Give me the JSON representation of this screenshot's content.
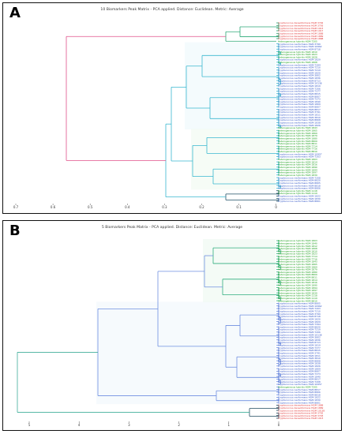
{
  "panels": [
    {
      "letter": "A",
      "title": "10 Biomarkers Peak Matrix - PCA applied. Distance: Euclidean. Metric: Average",
      "axis_ticks": [
        "0.7",
        "0.6",
        "0.5",
        "0.4",
        "0.3",
        "0.2",
        "0.1",
        "0"
      ],
      "leaves": [
        {
          "label": "Cryptococcus deneoformans HGM 3792",
          "group": "red"
        },
        {
          "label": "Cryptococcus deneoformans HGM 3793",
          "group": "red"
        },
        {
          "label": "Cryptococcus deneoformans HGM 1913",
          "group": "red"
        },
        {
          "label": "Cryptococcus deneoformans HGM 1917",
          "group": "red"
        },
        {
          "label": "Cryptococcus deneoformans HGM 1888",
          "group": "red"
        },
        {
          "label": "Cryptococcus deneoformans HGM 1889",
          "group": "red"
        },
        {
          "label": "Cryptococcus deneoformans HGM 1888",
          "group": "red"
        },
        {
          "label": "Heterogeneous hybrids HGM 7205",
          "group": "green"
        },
        {
          "label": "Cryptococcus neoformans HGM 3799",
          "group": "blue"
        },
        {
          "label": "Cryptococcus neoformans HGM 10962",
          "group": "blue"
        },
        {
          "label": "Cryptococcus neoformans HGM 8718",
          "group": "blue"
        },
        {
          "label": "Heterogeneous hybrids HGM 1810",
          "group": "green"
        },
        {
          "label": "Heterogeneous hybrids HGM 1823",
          "group": "green"
        },
        {
          "label": "Heterogeneous hybrids HGM 1828",
          "group": "green"
        },
        {
          "label": "Cryptococcus neoformans HGM 1829",
          "group": "blue"
        },
        {
          "label": "Heterogeneous hybrids HGM 1808",
          "group": "green"
        },
        {
          "label": "Cryptococcus neoformans HGM 7394",
          "group": "blue"
        },
        {
          "label": "Cryptococcus neoformans HGM 7210",
          "group": "blue"
        },
        {
          "label": "Cryptococcus neoformans HGM 7219",
          "group": "blue"
        },
        {
          "label": "Cryptococcus neoformans HGM 1820",
          "group": "blue"
        },
        {
          "label": "Cryptococcus neoformans HGM 3802",
          "group": "blue"
        },
        {
          "label": "Cryptococcus neoformans HGM 1836",
          "group": "blue"
        },
        {
          "label": "Cryptococcus neoformans HGM 8713",
          "group": "blue"
        },
        {
          "label": "Cryptococcus neoformans HGM 10138",
          "group": "blue"
        },
        {
          "label": "Cryptococcus neoformans HGM 1819",
          "group": "blue"
        },
        {
          "label": "Cryptococcus neoformans HGM 7206",
          "group": "blue"
        },
        {
          "label": "Cryptococcus neoformans HGM 7377",
          "group": "blue"
        },
        {
          "label": "Cryptococcus neoformans HGM 8815",
          "group": "blue"
        },
        {
          "label": "Cryptococcus neoformans HGM 8807",
          "group": "blue"
        },
        {
          "label": "Cryptococcus neoformans HGM 7373",
          "group": "blue"
        },
        {
          "label": "Cryptococcus neoformans HGM 1840",
          "group": "blue"
        },
        {
          "label": "Cryptococcus neoformans HGM 1809",
          "group": "blue"
        },
        {
          "label": "Cryptococcus neoformans HGM 8807",
          "group": "blue"
        },
        {
          "label": "Cryptococcus neoformans HGM 8817",
          "group": "blue"
        },
        {
          "label": "Cryptococcus neoformans HGM 3791",
          "group": "blue"
        },
        {
          "label": "Cryptococcus neoformans HGM 1811",
          "group": "blue"
        },
        {
          "label": "Cryptococcus neoformans HGM 3810",
          "group": "blue"
        },
        {
          "label": "Cryptococcus neoformans HGM 8808",
          "group": "blue"
        },
        {
          "label": "Cryptococcus neoformans HGM 1838",
          "group": "blue"
        },
        {
          "label": "Cryptococcus neoformans HGM 1826",
          "group": "blue"
        },
        {
          "label": "Heterogeneous hybrids HGM 1843",
          "group": "green"
        },
        {
          "label": "Heterogeneous hybrids HGM 1865",
          "group": "green"
        },
        {
          "label": "Heterogeneous hybrids HGM 1869",
          "group": "green"
        },
        {
          "label": "Heterogeneous hybrids HGM 1879",
          "group": "green"
        },
        {
          "label": "Heterogeneous hybrids HGM 1880",
          "group": "green"
        },
        {
          "label": "Heterogeneous hybrids HGM 8809",
          "group": "green"
        },
        {
          "label": "Heterogeneous hybrids HGM 8811",
          "group": "green"
        },
        {
          "label": "Heterogeneous hybrids HGM 7714",
          "group": "green"
        },
        {
          "label": "Heterogeneous hybrids HGM 7716",
          "group": "green"
        },
        {
          "label": "Heterogeneous hybrids HGM 8810",
          "group": "green"
        },
        {
          "label": "Cryptococcus neoformans HGM 10957",
          "group": "blue"
        },
        {
          "label": "Cryptococcus neoformans HGM 7203",
          "group": "blue"
        },
        {
          "label": "Heterogeneous hybrids HGM 1803",
          "group": "green"
        },
        {
          "label": "Heterogeneous hybrids HGM 1814",
          "group": "green"
        },
        {
          "label": "Heterogeneous hybrids HGM 1816",
          "group": "green"
        },
        {
          "label": "Heterogeneous hybrids HGM 1890",
          "group": "green"
        },
        {
          "label": "Heterogeneous hybrids HGM 1894",
          "group": "green"
        },
        {
          "label": "Heterogeneous hybrids HGM 1897",
          "group": "green"
        },
        {
          "label": "Heterogeneous hybrids HGM 1839",
          "group": "green"
        },
        {
          "label": "Cryptococcus neoformans HGM 7208",
          "group": "blue"
        },
        {
          "label": "Cryptococcus neoformans HGM 8820",
          "group": "blue"
        },
        {
          "label": "Cryptococcus neoformans HGM 8805",
          "group": "blue"
        },
        {
          "label": "Cryptococcus neoformans HGM 8818",
          "group": "blue"
        },
        {
          "label": "Cryptococcus neoformans HGM 8806",
          "group": "blue"
        },
        {
          "label": "Heterogeneous hybrids HGM 1118",
          "group": "green"
        },
        {
          "label": "Heterogeneous hybrids HGM 1119",
          "group": "green"
        },
        {
          "label": "Cryptococcus neoformans HGM 1822",
          "group": "blue"
        },
        {
          "label": "Cryptococcus neoformans HGM 1830",
          "group": "blue"
        },
        {
          "label": "Cryptococcus neoformans HGM 8801",
          "group": "blue"
        }
      ]
    },
    {
      "letter": "B",
      "title": "5 Biomarkers Peak Matrix - PCA applied. Distance: Euclidean. Metric: Average",
      "axis_ticks": [
        "5",
        "4",
        "3",
        "2",
        "1",
        "0"
      ],
      "leaves": [
        {
          "label": "Heterogeneous hybrids HGM 1803",
          "group": "green"
        },
        {
          "label": "Heterogeneous hybrids HGM 1840",
          "group": "green"
        },
        {
          "label": "Heterogeneous hybrids HGM 1812",
          "group": "green"
        },
        {
          "label": "Heterogeneous hybrids HGM 1808",
          "group": "green"
        },
        {
          "label": "Heterogeneous hybrids HGM 1810",
          "group": "green"
        },
        {
          "label": "Heterogeneous hybrids HGM 1823",
          "group": "green"
        },
        {
          "label": "Heterogeneous hybrids HGM 7714",
          "group": "green"
        },
        {
          "label": "Heterogeneous hybrids HGM 7716",
          "group": "green"
        },
        {
          "label": "Heterogeneous hybrids HGM 1843",
          "group": "green"
        },
        {
          "label": "Heterogeneous hybrids HGM 1865",
          "group": "green"
        },
        {
          "label": "Heterogeneous hybrids HGM 1869",
          "group": "green"
        },
        {
          "label": "Heterogeneous hybrids HGM 1879",
          "group": "green"
        },
        {
          "label": "Heterogeneous hybrids HGM 1880",
          "group": "green"
        },
        {
          "label": "Heterogeneous hybrids HGM 8809",
          "group": "green"
        },
        {
          "label": "Heterogeneous hybrids HGM 8811",
          "group": "green"
        },
        {
          "label": "Heterogeneous hybrids HGM 1814",
          "group": "green"
        },
        {
          "label": "Heterogeneous hybrids HGM 1816",
          "group": "green"
        },
        {
          "label": "Heterogeneous hybrids HGM 1890",
          "group": "green"
        },
        {
          "label": "Heterogeneous hybrids HGM 1894",
          "group": "green"
        },
        {
          "label": "Heterogeneous hybrids HGM 1897",
          "group": "green"
        },
        {
          "label": "Heterogeneous hybrids HGM 1839",
          "group": "green"
        },
        {
          "label": "Heterogeneous hybrids HGM 1118",
          "group": "green"
        },
        {
          "label": "Heterogeneous hybrids HGM 1119",
          "group": "green"
        },
        {
          "label": "Heterogeneous hybrids HGM 8810",
          "group": "green"
        },
        {
          "label": "Cryptococcus neoformans HGM 8805",
          "group": "blue"
        },
        {
          "label": "Cryptococcus neoformans HGM 10962",
          "group": "blue"
        },
        {
          "label": "Cryptococcus neoformans HGM 7203",
          "group": "blue"
        },
        {
          "label": "Cryptococcus neoformans HGM 7210",
          "group": "blue"
        },
        {
          "label": "Cryptococcus neoformans HGM 3799",
          "group": "blue"
        },
        {
          "label": "Cryptococcus neoformans HGM 8718",
          "group": "blue"
        },
        {
          "label": "Cryptococcus neoformans HGM 1820",
          "group": "blue"
        },
        {
          "label": "Cryptococcus neoformans HGM 1829",
          "group": "blue"
        },
        {
          "label": "Cryptococcus neoformans HGM 7394",
          "group": "blue"
        },
        {
          "label": "Cryptococcus neoformans HGM 8820",
          "group": "blue"
        },
        {
          "label": "Cryptococcus neoformans HGM 7219",
          "group": "blue"
        },
        {
          "label": "Cryptococcus neoformans HGM 7206",
          "group": "blue"
        },
        {
          "label": "Cryptococcus neoformans HGM 10138",
          "group": "blue"
        },
        {
          "label": "Cryptococcus neoformans HGM 3802",
          "group": "blue"
        },
        {
          "label": "Cryptococcus neoformans HGM 1836",
          "group": "blue"
        },
        {
          "label": "Cryptococcus neoformans HGM 8713",
          "group": "blue"
        },
        {
          "label": "Cryptococcus neoformans HGM 1819",
          "group": "blue"
        },
        {
          "label": "Cryptococcus neoformans HGM 7377",
          "group": "blue"
        },
        {
          "label": "Cryptococcus neoformans HGM 8815",
          "group": "blue"
        },
        {
          "label": "Cryptococcus neoformans HGM 3791",
          "group": "blue"
        },
        {
          "label": "Cryptococcus neoformans HGM 1811",
          "group": "blue"
        },
        {
          "label": "Cryptococcus neoformans HGM 3810",
          "group": "blue"
        },
        {
          "label": "Cryptococcus neoformans HGM 8808",
          "group": "blue"
        },
        {
          "label": "Cryptococcus neoformans HGM 1838",
          "group": "blue"
        },
        {
          "label": "Cryptococcus neoformans HGM 1826",
          "group": "blue"
        },
        {
          "label": "Cryptococcus neoformans HGM 1809",
          "group": "blue"
        },
        {
          "label": "Cryptococcus neoformans HGM 8807",
          "group": "blue"
        },
        {
          "label": "Cryptococcus neoformans HGM 7373",
          "group": "blue"
        },
        {
          "label": "Cryptococcus neoformans HGM 1840",
          "group": "blue"
        },
        {
          "label": "Cryptococcus neoformans HGM 8817",
          "group": "blue"
        },
        {
          "label": "Cryptococcus neoformans HGM 7208",
          "group": "blue"
        },
        {
          "label": "Cryptococcus neoformans HGM 10957",
          "group": "blue"
        },
        {
          "label": "Heterogeneous hybrids HGM 7205",
          "group": "green"
        },
        {
          "label": "Cryptococcus neoformans HGM 8817",
          "group": "blue"
        },
        {
          "label": "Cryptococcus neoformans HGM 8806",
          "group": "blue"
        },
        {
          "label": "Cryptococcus neoformans HGM 8818",
          "group": "blue"
        },
        {
          "label": "Cryptococcus neoformans HGM 1822",
          "group": "blue"
        },
        {
          "label": "Cryptococcus neoformans HGM 1830",
          "group": "blue"
        },
        {
          "label": "Cryptococcus neoformans HGM 8801",
          "group": "blue"
        },
        {
          "label": "Cryptococcus deneoformans HGM 1888",
          "group": "red"
        },
        {
          "label": "Cryptococcus deneoformans HGM 1889",
          "group": "red"
        },
        {
          "label": "Cryptococcus deneoformans HGM 10138",
          "group": "red"
        },
        {
          "label": "Cryptococcus deneoformans HGM 3792",
          "group": "red"
        },
        {
          "label": "Cryptococcus deneoformans HGM 3793",
          "group": "red"
        },
        {
          "label": "Cryptococcus deneoformans HGM 1913",
          "group": "red"
        }
      ]
    }
  ],
  "group_colors": {
    "red": "#e03030",
    "green": "#1a9e1a",
    "blue": "#2a4fc4"
  },
  "branch_colors": {
    "A_red_clade": "#2aa876",
    "A_main": "#3ab8d0",
    "A_dark": "#1f4f66",
    "A_root": "#e0508a",
    "B_main": "#6f8fe0",
    "B_green_clade": "#2fae7e",
    "B_dark": "#1f4a5e",
    "B_root": "#3fae9a"
  }
}
